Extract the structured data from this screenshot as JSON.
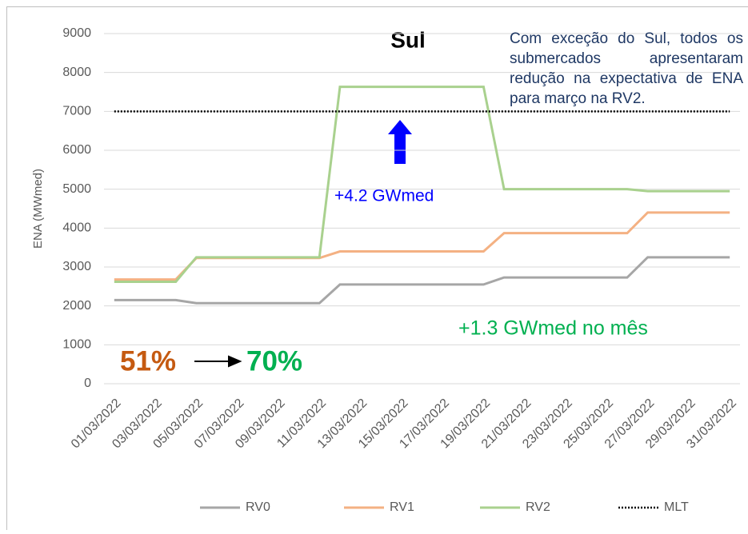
{
  "chart_data": {
    "type": "line",
    "title": "Sul",
    "y_label": "ENA (MWmed)",
    "categories": [
      "01/03/2022",
      null,
      "03/03/2022",
      null,
      "05/03/2022",
      null,
      "07/03/2022",
      null,
      "09/03/2022",
      null,
      "11/03/2022",
      null,
      "13/03/2022",
      null,
      "15/03/2022",
      null,
      "17/03/2022",
      null,
      "19/03/2022",
      null,
      "21/03/2022",
      null,
      "23/03/2022",
      null,
      "25/03/2022",
      null,
      "27/03/2022",
      null,
      "29/03/2022",
      null,
      "31/03/2022"
    ],
    "series": [
      {
        "name": "RV0",
        "color": "#a6a6a6",
        "dashed": false,
        "values": [
          2150,
          2150,
          2150,
          2150,
          2070,
          2070,
          2070,
          2070,
          2070,
          2070,
          2070,
          2550,
          2550,
          2550,
          2550,
          2550,
          2550,
          2550,
          2550,
          2730,
          2730,
          2730,
          2730,
          2730,
          2730,
          2730,
          3250,
          3250,
          3250,
          3250,
          3250
        ]
      },
      {
        "name": "RV1",
        "color": "#f4b183",
        "dashed": false,
        "values": [
          2680,
          2680,
          2680,
          2680,
          3230,
          3230,
          3230,
          3230,
          3230,
          3230,
          3230,
          3400,
          3400,
          3400,
          3400,
          3400,
          3400,
          3400,
          3400,
          3870,
          3870,
          3870,
          3870,
          3870,
          3870,
          3870,
          4400,
          4400,
          4400,
          4400,
          4400
        ]
      },
      {
        "name": "RV2",
        "color": "#a9d18e",
        "dashed": false,
        "values": [
          2620,
          2620,
          2620,
          2620,
          3250,
          3250,
          3250,
          3250,
          3250,
          3250,
          3250,
          7630,
          7630,
          7630,
          7630,
          7630,
          7630,
          7630,
          7630,
          5000,
          5000,
          5000,
          5000,
          5000,
          5000,
          5000,
          4950,
          4950,
          4950,
          4950,
          4950
        ]
      },
      {
        "name": "MLT",
        "color": "#000000",
        "dashed": true,
        "values": [
          7000,
          7000,
          7000,
          7000,
          7000,
          7000,
          7000,
          7000,
          7000,
          7000,
          7000,
          7000,
          7000,
          7000,
          7000,
          7000,
          7000,
          7000,
          7000,
          7000,
          7000,
          7000,
          7000,
          7000,
          7000,
          7000,
          7000,
          7000,
          7000,
          7000,
          7000
        ]
      }
    ],
    "ylim": [
      0,
      9000
    ],
    "yticks": [
      0,
      1000,
      2000,
      3000,
      4000,
      5000,
      6000,
      7000,
      8000,
      9000
    ],
    "grid": true,
    "legend": "bottom",
    "annotations": {
      "note": "Com exceção do Sul, todos os submercados apresentaram redução na expectativa de ENA para março na RV2.",
      "peak": "+4.2 GWmed",
      "month": "+1.3 GWmed no mês",
      "from": "51%",
      "to": "70%"
    }
  }
}
